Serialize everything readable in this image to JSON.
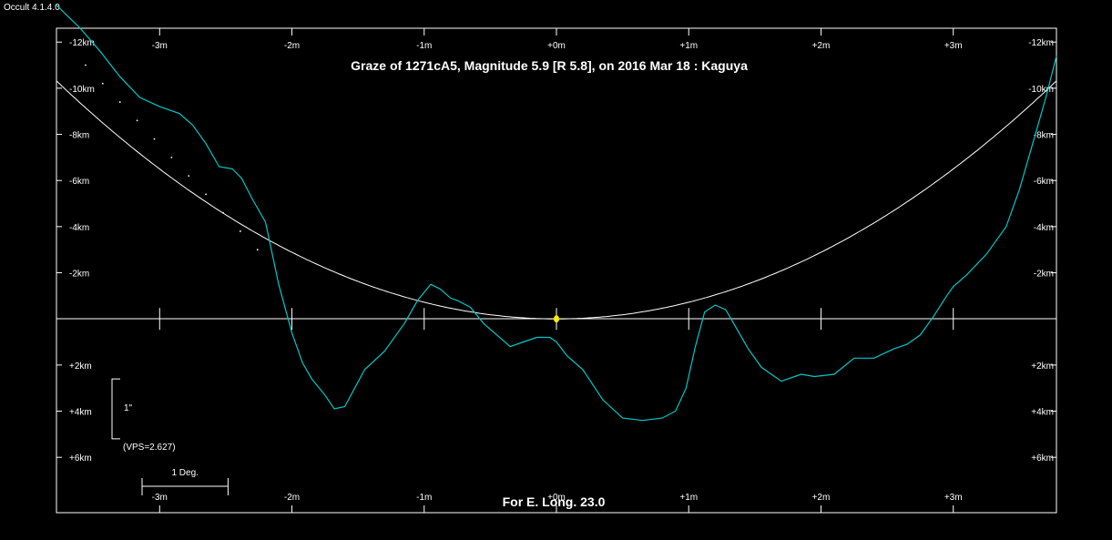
{
  "app_label": "Occult 4.1.4.0",
  "chart_data": {
    "type": "line",
    "title": "Graze of  1271cA5,  Magnitude 5.9 [R 5.8],  on 2016 Mar 18  :  Kaguya",
    "footer": "For E. Long. 23.0",
    "x_tick_labels": [
      "-3m",
      "-2m",
      "-1m",
      "+0m",
      "+1m",
      "+2m",
      "+3m"
    ],
    "x_ticks": [
      -3,
      -2,
      -1,
      0,
      1,
      2,
      3
    ],
    "xlim": [
      -3.78,
      3.78
    ],
    "y_tick_labels": [
      "-12km",
      "-10km",
      "-8km",
      "-6km",
      "-4km",
      "-2km",
      "+2km",
      "+4km",
      "+6km"
    ],
    "y_ticks": [
      -12,
      -10,
      -8,
      -6,
      -4,
      -2,
      2,
      4,
      6
    ],
    "ylim": [
      -12.6,
      8.4
    ],
    "scale_bar": {
      "label": "1\"",
      "vps_label": "(VPS=2.627)",
      "y_top": 2.6,
      "y_bottom": 5.2
    },
    "deg_bar": {
      "label": "1 Deg.",
      "length_minutes": 0.65
    },
    "limb_profile": {
      "color": "#00c8c8",
      "x": [
        -3.78,
        -3.6,
        -3.45,
        -3.3,
        -3.15,
        -3.0,
        -2.85,
        -2.75,
        -2.65,
        -2.55,
        -2.45,
        -2.38,
        -2.3,
        -2.2,
        -2.1,
        -2.0,
        -1.92,
        -1.85,
        -1.75,
        -1.68,
        -1.6,
        -1.45,
        -1.3,
        -1.15,
        -1.05,
        -0.95,
        -0.88,
        -0.8,
        -0.75,
        -0.65,
        -0.55,
        -0.45,
        -0.35,
        -0.25,
        -0.15,
        -0.05,
        0.0,
        0.08,
        0.2,
        0.35,
        0.5,
        0.65,
        0.8,
        0.9,
        0.98,
        1.05,
        1.12,
        1.2,
        1.28,
        1.35,
        1.45,
        1.55,
        1.7,
        1.85,
        1.95,
        2.1,
        2.25,
        2.4,
        2.55,
        2.65,
        2.75,
        2.85,
        2.95,
        3.0,
        3.1,
        3.25,
        3.4,
        3.5,
        3.6,
        3.7,
        3.78
      ],
      "y": [
        -13.6,
        -12.6,
        -11.6,
        -10.5,
        -9.6,
        -9.2,
        -8.9,
        -8.4,
        -7.6,
        -6.6,
        -6.5,
        -6.1,
        -5.2,
        -4.2,
        -1.5,
        0.6,
        1.9,
        2.6,
        3.3,
        3.9,
        3.8,
        2.2,
        1.4,
        0.2,
        -0.8,
        -1.5,
        -1.3,
        -0.9,
        -0.8,
        -0.5,
        0.2,
        0.7,
        1.2,
        1.0,
        0.8,
        0.8,
        1.0,
        1.6,
        2.2,
        3.5,
        4.3,
        4.4,
        4.3,
        4.0,
        3.0,
        1.2,
        -0.3,
        -0.6,
        -0.4,
        0.3,
        1.3,
        2.1,
        2.7,
        2.4,
        2.5,
        2.4,
        1.7,
        1.7,
        1.3,
        1.1,
        0.7,
        -0.1,
        -1.0,
        -1.4,
        -1.9,
        -2.8,
        -4.0,
        -5.6,
        -7.6,
        -9.6,
        -11.4
      ]
    },
    "graze_curve": {
      "color": "#ffffff",
      "curvature_km_per_min2": 0.722
    },
    "dotted_path": {
      "color": "#ffffff",
      "x": [
        -3.56,
        -3.43,
        -3.3,
        -3.17,
        -3.04,
        -2.91,
        -2.78,
        -2.65,
        -2.52,
        -2.39,
        -2.26
      ],
      "y": [
        -11.0,
        -10.2,
        -9.4,
        -8.6,
        -7.8,
        -7.0,
        -6.2,
        -5.4,
        -4.6,
        -3.8,
        -3.0
      ]
    },
    "star_marker": {
      "x": 0,
      "y": 0,
      "color": "#ffee00"
    }
  }
}
